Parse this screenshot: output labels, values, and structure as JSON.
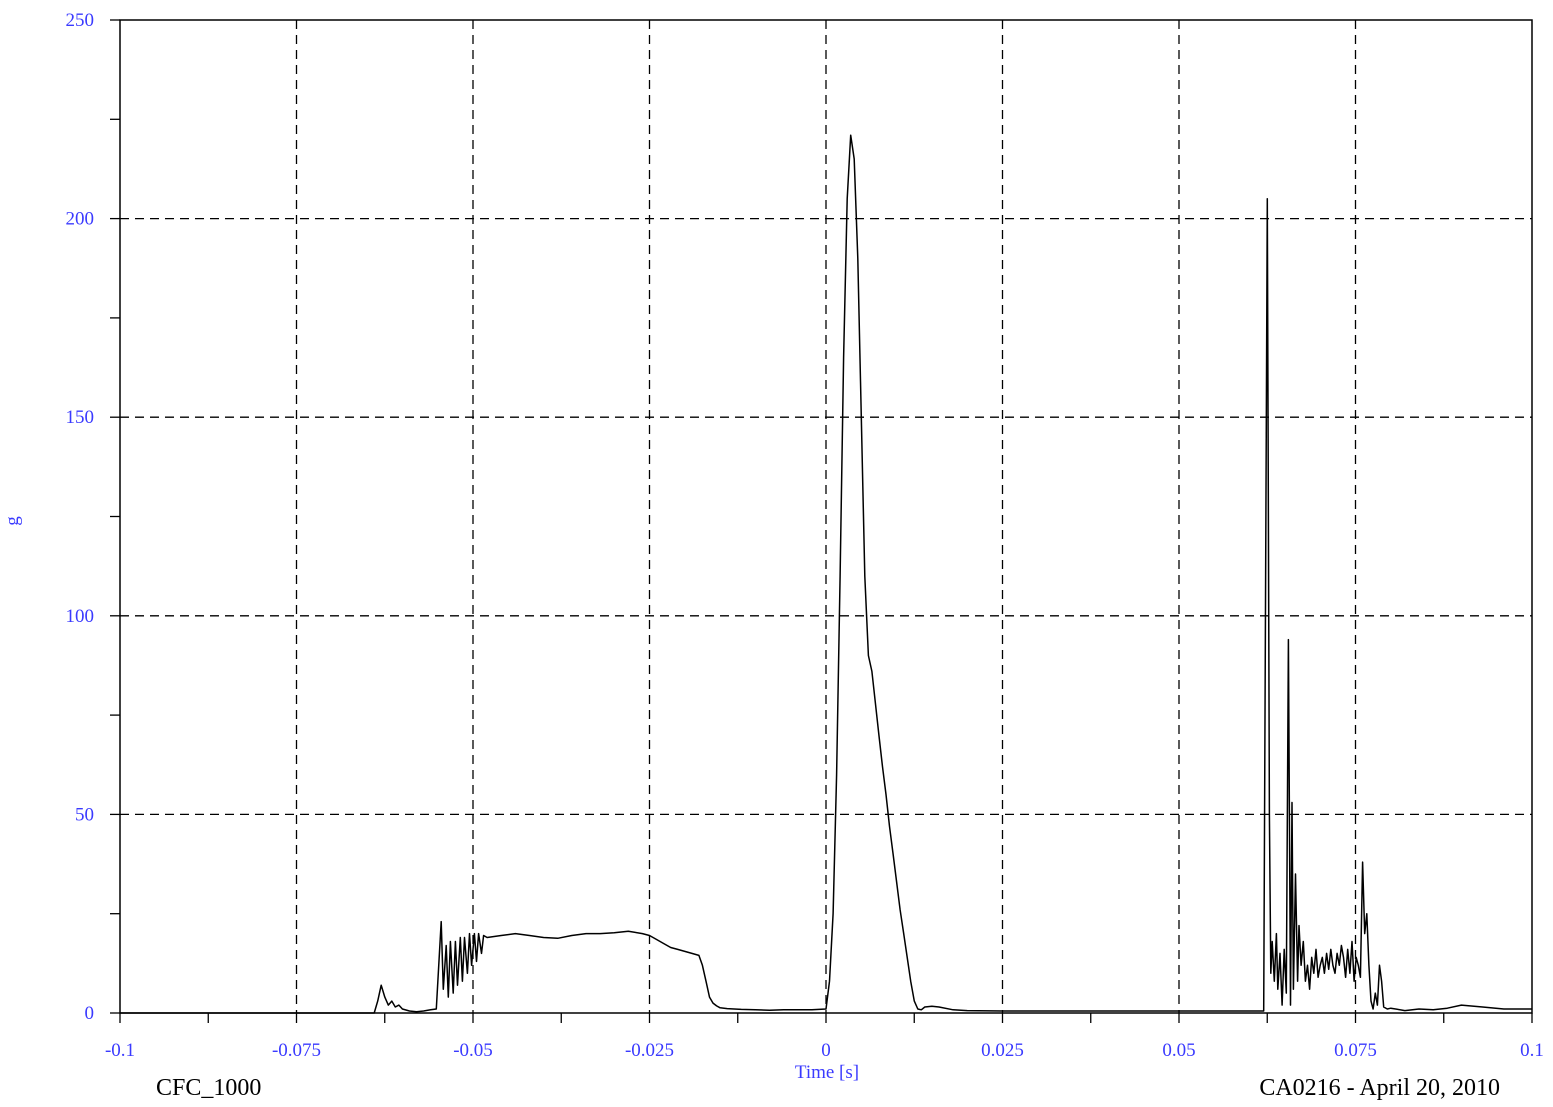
{
  "chart_data": {
    "type": "line",
    "title": "",
    "xlabel": "Time [s]",
    "ylabel": "g",
    "xlim": [
      -0.1,
      0.1
    ],
    "ylim": [
      0,
      250
    ],
    "x_ticks": [
      -0.1,
      -0.075,
      -0.05,
      -0.025,
      0,
      0.025,
      0.05,
      0.075,
      0.1
    ],
    "x_tick_labels": [
      "-0.1",
      "-0.075",
      "-0.05",
      "-0.025",
      "0",
      "0.025",
      "0.05",
      "0.075",
      "0.1"
    ],
    "y_ticks": [
      0,
      50,
      100,
      150,
      200,
      250
    ],
    "y_tick_labels": [
      "0",
      "50",
      "100",
      "150",
      "200",
      "250"
    ],
    "grid": true,
    "footer_left": "CFC_1000",
    "footer_right": "CA0216 - April 20, 2010",
    "colors": {
      "line": "#000000",
      "grid": "#000000",
      "tick_text": "#3a3aff",
      "footer_text": "#000000"
    },
    "series": [
      {
        "x": [
          -0.1,
          -0.064,
          -0.0635,
          -0.063,
          -0.0625,
          -0.062,
          -0.0615,
          -0.061,
          -0.0605,
          -0.06,
          -0.059,
          -0.058,
          -0.057,
          -0.056,
          -0.0552,
          -0.0545,
          -0.0542,
          -0.0538,
          -0.0535,
          -0.0532,
          -0.0528,
          -0.0525,
          -0.0522,
          -0.0518,
          -0.0515,
          -0.0512,
          -0.0508,
          -0.0505,
          -0.0502,
          -0.0498,
          -0.0495,
          -0.0492,
          -0.0488,
          -0.0485,
          -0.048,
          -0.046,
          -0.044,
          -0.042,
          -0.04,
          -0.038,
          -0.036,
          -0.034,
          -0.032,
          -0.03,
          -0.028,
          -0.026,
          -0.025,
          -0.024,
          -0.023,
          -0.022,
          -0.021,
          -0.02,
          -0.019,
          -0.018,
          -0.0175,
          -0.017,
          -0.0165,
          -0.016,
          -0.0155,
          -0.015,
          -0.014,
          -0.013,
          -0.012,
          -0.01,
          -0.008,
          -0.006,
          -0.004,
          -0.002,
          0,
          0.0005,
          0.001,
          0.0015,
          0.002,
          0.0025,
          0.003,
          0.0035,
          0.004,
          0.0045,
          0.005,
          0.0055,
          0.006,
          0.0065,
          0.007,
          0.0075,
          0.008,
          0.0085,
          0.009,
          0.0095,
          0.01,
          0.0105,
          0.011,
          0.0115,
          0.012,
          0.0125,
          0.013,
          0.0135,
          0.014,
          0.015,
          0.016,
          0.018,
          0.02,
          0.025,
          0.03,
          0.04,
          0.05,
          0.06,
          0.062,
          0.0625,
          0.0628,
          0.063,
          0.0632,
          0.0635,
          0.0638,
          0.064,
          0.0643,
          0.0646,
          0.0649,
          0.0652,
          0.0655,
          0.0658,
          0.066,
          0.0662,
          0.0665,
          0.0668,
          0.067,
          0.0673,
          0.0676,
          0.0679,
          0.0682,
          0.0685,
          0.0688,
          0.0691,
          0.0694,
          0.0697,
          0.07,
          0.0703,
          0.0706,
          0.0709,
          0.0712,
          0.0715,
          0.0718,
          0.0721,
          0.0724,
          0.0727,
          0.073,
          0.0733,
          0.0736,
          0.0739,
          0.0742,
          0.0745,
          0.0748,
          0.0751,
          0.0754,
          0.0757,
          0.076,
          0.0763,
          0.0766,
          0.0769,
          0.0772,
          0.0775,
          0.0778,
          0.0781,
          0.0784,
          0.0787,
          0.079,
          0.0795,
          0.08,
          0.082,
          0.084,
          0.086,
          0.088,
          0.09,
          0.093,
          0.096,
          0.1
        ],
        "y": [
          0,
          0,
          3,
          7,
          4,
          2,
          3,
          1.5,
          2,
          1,
          0.5,
          0.3,
          0.5,
          0.8,
          1,
          23,
          6,
          17,
          4,
          18,
          5,
          18,
          7,
          19,
          8,
          19,
          10,
          20,
          12,
          20,
          13,
          20,
          15,
          19.5,
          19,
          19.5,
          20,
          19.5,
          19,
          18.8,
          19.5,
          20,
          20,
          20.2,
          20.6,
          20,
          19.5,
          18.5,
          17.5,
          16.5,
          16,
          15.5,
          15,
          14.5,
          12,
          8,
          4,
          2.5,
          1.8,
          1.3,
          1.1,
          1,
          0.9,
          0.8,
          0.7,
          0.8,
          0.8,
          0.8,
          1,
          8,
          25,
          60,
          110,
          165,
          205,
          221,
          215,
          190,
          150,
          110,
          90,
          86,
          78,
          70,
          62,
          55,
          47,
          40,
          33,
          26,
          20,
          14,
          8,
          3,
          1,
          0.8,
          1.5,
          1.7,
          1.5,
          0.8,
          0.6,
          0.5,
          0.5,
          0.5,
          0.5,
          0.5,
          0.5,
          205,
          50,
          10,
          18,
          8,
          20,
          6,
          15,
          2,
          16,
          5,
          94,
          2,
          53,
          6,
          35,
          8,
          22,
          12,
          18,
          8,
          12,
          6,
          14,
          10,
          16,
          9,
          12,
          14,
          10,
          15,
          11,
          16,
          12,
          10,
          15,
          12,
          17,
          14,
          9,
          16,
          10,
          18,
          8,
          14,
          12,
          9,
          38,
          20,
          25,
          12,
          3,
          1,
          5,
          2,
          12,
          8,
          1.5,
          1,
          1.2,
          0.6,
          1,
          0.8,
          1.2,
          2,
          1.5,
          1,
          1
        ]
      }
    ]
  }
}
